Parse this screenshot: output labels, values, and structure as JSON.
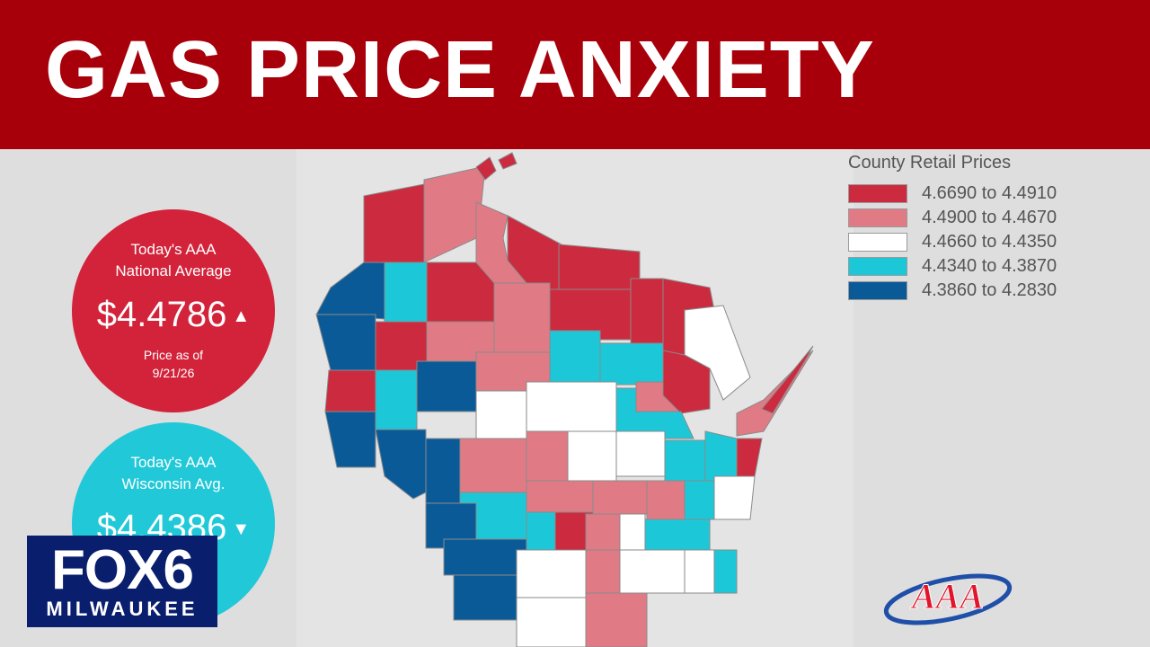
{
  "headline": "GAS PRICE ANXIETY",
  "national": {
    "label_line1": "Today's AAA",
    "label_line2": "National Average",
    "price": "$4.4786",
    "trend": "up",
    "asof_line1": "Price as of",
    "asof_line2": "9/21/26",
    "color": "#d2233a"
  },
  "wisconsin": {
    "label_line1": "Today's AAA",
    "label_line2": "Wisconsin Avg.",
    "price": "$4.4386",
    "trend": "down",
    "color": "#21c8d8"
  },
  "legend": {
    "title": "County Retail Prices",
    "items": [
      {
        "range": "4.6690 to 4.4910",
        "color": "#cc2a3e"
      },
      {
        "range": "4.4900 to 4.4670",
        "color": "#e07b86"
      },
      {
        "range": "4.4660 to 4.4350",
        "color": "#ffffff"
      },
      {
        "range": "4.4340 to 4.3870",
        "color": "#1cc8d8"
      },
      {
        "range": "4.3860 to 4.2830",
        "color": "#0b5a98"
      }
    ]
  },
  "map": {
    "title": "Wisconsin county gas prices",
    "counties": [
      {
        "tier": 1
      },
      {
        "tier": 0
      },
      {
        "tier": 1
      },
      {
        "tier": 0
      },
      {
        "tier": 0
      },
      {
        "tier": 4
      },
      {
        "tier": 3
      },
      {
        "tier": 1
      },
      {
        "tier": 0
      },
      {
        "tier": 0
      },
      {
        "tier": 0
      },
      {
        "tier": 0
      },
      {
        "tier": 4
      },
      {
        "tier": 0
      },
      {
        "tier": 1
      },
      {
        "tier": 0
      },
      {
        "tier": 2
      },
      {
        "tier": 4
      },
      {
        "tier": 1
      },
      {
        "tier": 3
      },
      {
        "tier": 4
      },
      {
        "tier": 3
      },
      {
        "tier": 3
      },
      {
        "tier": 2
      },
      {
        "tier": 2
      },
      {
        "tier": 1
      },
      {
        "tier": 1
      },
      {
        "tier": 0
      },
      {
        "tier": 3
      },
      {
        "tier": 2
      },
      {
        "tier": 4
      },
      {
        "tier": 4
      },
      {
        "tier": 1
      },
      {
        "tier": 1
      },
      {
        "tier": 3
      },
      {
        "tier": 3
      },
      {
        "tier": 2
      },
      {
        "tier": 0
      },
      {
        "tier": 3
      },
      {
        "tier": 1
      },
      {
        "tier": 4
      },
      {
        "tier": 3
      },
      {
        "tier": 0
      },
      {
        "tier": 1
      },
      {
        "tier": 1
      },
      {
        "tier": 3
      },
      {
        "tier": 2
      },
      {
        "tier": 1
      },
      {
        "tier": 2
      },
      {
        "tier": 2
      },
      {
        "tier": 4
      },
      {
        "tier": 4
      },
      {
        "tier": 2
      },
      {
        "tier": 1
      },
      {
        "tier": 3
      },
      {
        "tier": 2
      },
      {
        "tier": 3
      },
      {
        "tier": 2
      },
      {
        "tier": 1
      }
    ]
  },
  "station_logo": {
    "line1": "FOX6",
    "line2": "MILWAUKEE"
  },
  "sponsor_logo": {
    "text": "AAA"
  }
}
